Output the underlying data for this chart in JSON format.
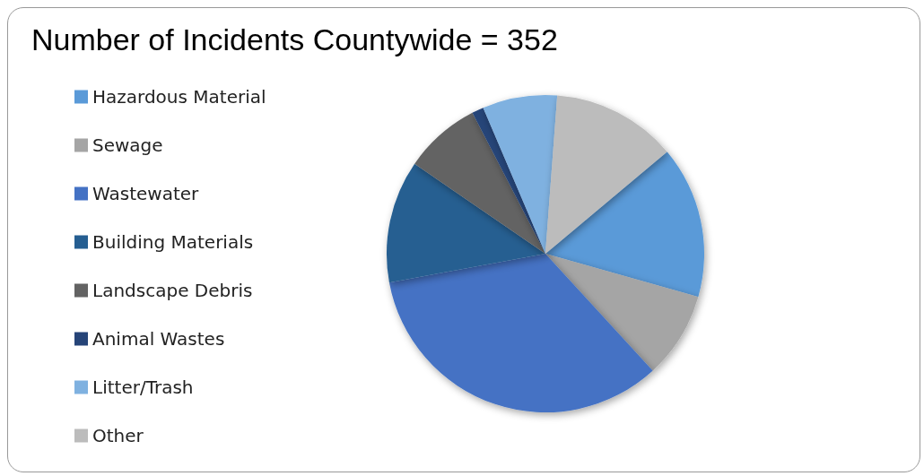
{
  "chart_data": {
    "type": "pie",
    "title": "Number of Incidents Countywide = 352",
    "categories": [
      "Hazardous Material",
      "Sewage",
      "Wastewater",
      "Building Materials",
      "Landscape Debris",
      "Animal Wastes",
      "Litter/Trash",
      "Other"
    ],
    "values": [
      15.5,
      8.8,
      33.9,
      12.5,
      7.8,
      1.2,
      7.6,
      12.7
    ],
    "colors": [
      "#5a9ad8",
      "#a5a5a5",
      "#4472c4",
      "#255e91",
      "#636363",
      "#264478",
      "#7fb1e0",
      "#bcbcbc"
    ],
    "legend": "left"
  }
}
